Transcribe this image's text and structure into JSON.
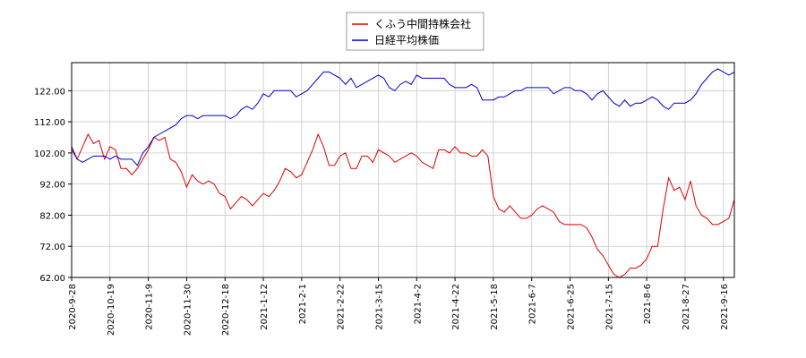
{
  "chart_data": {
    "type": "line",
    "categories": [
      "2020-9-28",
      null,
      null,
      null,
      null,
      null,
      null,
      "2020-10-19",
      null,
      null,
      null,
      null,
      null,
      null,
      "2020-11-9",
      null,
      null,
      null,
      null,
      null,
      null,
      "2020-11-30",
      null,
      null,
      null,
      null,
      null,
      null,
      "2020-12-18",
      null,
      null,
      null,
      null,
      null,
      null,
      "2021-1-12",
      null,
      null,
      null,
      null,
      null,
      null,
      "2021-2-1",
      null,
      null,
      null,
      null,
      null,
      null,
      "2021-2-22",
      null,
      null,
      null,
      null,
      null,
      null,
      "2021-3-15",
      null,
      null,
      null,
      null,
      null,
      null,
      "2021-4-2",
      null,
      null,
      null,
      null,
      null,
      null,
      "2021-4-22",
      null,
      null,
      null,
      null,
      null,
      null,
      "2021-5-18",
      null,
      null,
      null,
      null,
      null,
      null,
      "2021-6-7",
      null,
      null,
      null,
      null,
      null,
      null,
      "2021-6-25",
      null,
      null,
      null,
      null,
      null,
      null,
      "2021-7-15",
      null,
      null,
      null,
      null,
      null,
      null,
      "2021-8-6",
      null,
      null,
      null,
      null,
      null,
      null,
      "2021-8-27",
      null,
      null,
      null,
      null,
      null,
      null,
      "2021-9-16",
      null,
      null
    ],
    "series": [
      {
        "name": "くふう中間持株会社",
        "color": "#dd0000",
        "values": [
          103,
          100,
          104,
          108,
          105,
          106,
          100,
          104,
          103,
          97,
          97,
          95,
          97,
          100,
          103,
          107,
          106,
          107,
          100,
          99,
          96,
          91,
          95,
          93,
          92,
          93,
          92,
          89,
          88,
          84,
          86,
          88,
          87,
          85,
          87,
          89,
          88,
          90,
          93,
          97,
          96,
          94,
          95,
          99,
          103,
          108,
          104,
          98,
          98,
          101,
          102,
          97,
          97,
          101,
          101,
          99,
          103,
          102,
          101,
          99,
          100,
          101,
          102,
          101,
          99,
          98,
          97,
          103,
          103,
          102,
          104,
          102,
          102,
          101,
          101,
          103,
          101,
          88,
          84,
          83,
          85,
          83,
          81,
          81,
          82,
          84,
          85,
          84,
          83,
          80,
          79,
          79,
          79,
          79,
          78,
          75,
          71,
          69,
          66,
          63,
          62,
          63,
          65,
          65,
          66,
          68,
          72,
          72,
          84,
          94,
          90,
          91,
          87,
          93,
          85,
          82,
          81,
          79,
          79,
          80,
          81,
          87
        ]
      },
      {
        "name": "日経平均株価",
        "color": "#0000cc",
        "values": [
          104,
          100,
          99,
          100,
          101,
          101,
          101,
          100,
          101,
          100,
          100,
          100,
          98,
          102,
          104,
          107,
          108,
          109,
          110,
          111,
          113,
          114,
          114,
          113,
          114,
          114,
          114,
          114,
          114,
          113,
          114,
          116,
          117,
          116,
          118,
          121,
          120,
          122,
          122,
          122,
          122,
          120,
          121,
          122,
          124,
          126,
          128,
          128,
          127,
          126,
          124,
          126,
          123,
          124,
          125,
          126,
          127,
          126,
          123,
          122,
          124,
          125,
          124,
          127,
          126,
          126,
          126,
          126,
          126,
          124,
          123,
          123,
          123,
          124,
          123,
          119,
          119,
          119,
          120,
          120,
          121,
          122,
          122,
          123,
          123,
          123,
          123,
          123,
          121,
          122,
          123,
          123,
          122,
          122,
          121,
          119,
          121,
          122,
          120,
          118,
          117,
          119,
          117,
          118,
          118,
          119,
          120,
          119,
          117,
          116,
          118,
          118,
          118,
          119,
          121,
          124,
          126,
          128,
          129,
          128,
          127,
          128
        ]
      }
    ],
    "ylim": [
      62,
      131
    ],
    "yticks": [
      {
        "value": 62,
        "label": "62.00"
      },
      {
        "value": 72,
        "label": "72.00"
      },
      {
        "value": 82,
        "label": "82.00"
      },
      {
        "value": 92,
        "label": "92.00"
      },
      {
        "value": 102,
        "label": "102.00"
      },
      {
        "value": 112,
        "label": "112.00"
      },
      {
        "value": 122,
        "label": "122.00"
      }
    ],
    "grid": true
  }
}
